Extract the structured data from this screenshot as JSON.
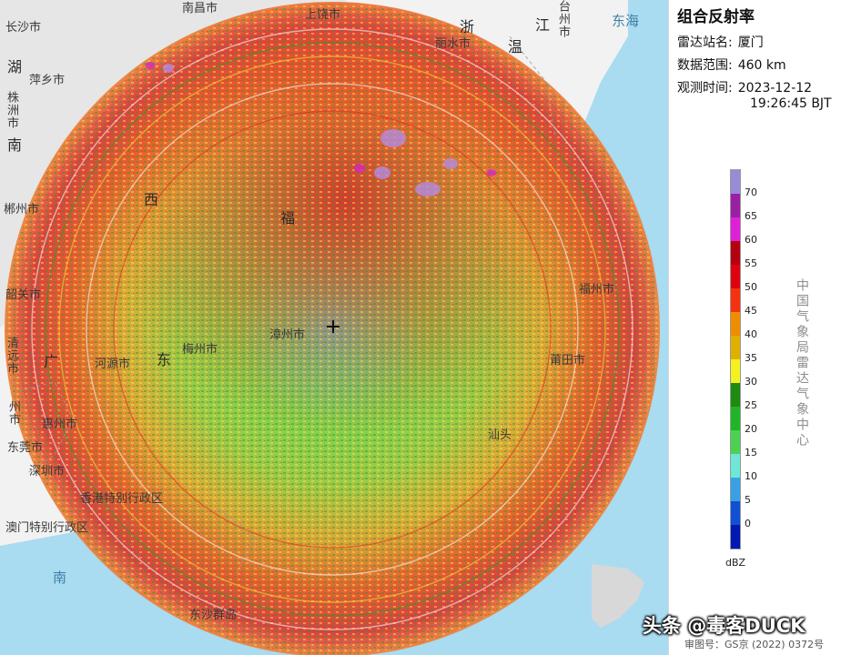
{
  "panel": {
    "title": "组合反射率",
    "station_key": "雷达站名:",
    "station_value": "厦门",
    "range_key": "数据范围:",
    "range_value": "460 km",
    "time_key": "观测时间:",
    "time_date": "2023-12-12",
    "time_clock": "19:26:45 BJT"
  },
  "legend": {
    "unit": "dBZ",
    "ticks": [
      "70",
      "65",
      "60",
      "55",
      "50",
      "45",
      "40",
      "35",
      "30",
      "25",
      "20",
      "15",
      "10",
      "5",
      "0"
    ],
    "colors": [
      "#9a8bd6",
      "#9b1fa3",
      "#e020d8",
      "#b40010",
      "#e00010",
      "#f53210",
      "#f08c00",
      "#e0b000",
      "#f5f020",
      "#1e8a10",
      "#20b428",
      "#4cd250",
      "#6ee6d8",
      "#3aa0e6",
      "#1050d2",
      "#0018b4"
    ],
    "credit": "中国气象局雷达气象中心"
  },
  "map_labels": {
    "nanchang": "南昌市",
    "changsha": "长沙市",
    "shangrao": "上饶市",
    "lishui": "丽水市",
    "wenzhou_1": "温",
    "taizhou": "台州市",
    "jiang": "江",
    "zhe": "浙",
    "donghai": "东海",
    "hu": "湖",
    "pingxiang": "萍乡市",
    "zhuzhou": "株洲市",
    "nan": "南",
    "chenzhou": "郴州市",
    "xi": "西",
    "fu": "福",
    "shaoguan": "韶关市",
    "qingyuan": "清远市",
    "guang": "广",
    "dong": "东",
    "meizhou": "梅州市",
    "heyuan": "河源市",
    "zhangzhou": "漳州市",
    "guangzhou": "州市",
    "huizhou": "惠州市",
    "dongguan": "东莞市",
    "shenzhen": "深圳市",
    "hongkong": "香港特别行政区",
    "macau": "澳门特别行政区",
    "nan_sea": "南",
    "dongsha": "东沙群岛",
    "yangjiang": "汕头",
    "fuzhou": "福州市",
    "putian": "莆田市"
  },
  "approval": "审图号：GS京 (2022) 0372号",
  "watermark": "头条 @毒客DUCK"
}
